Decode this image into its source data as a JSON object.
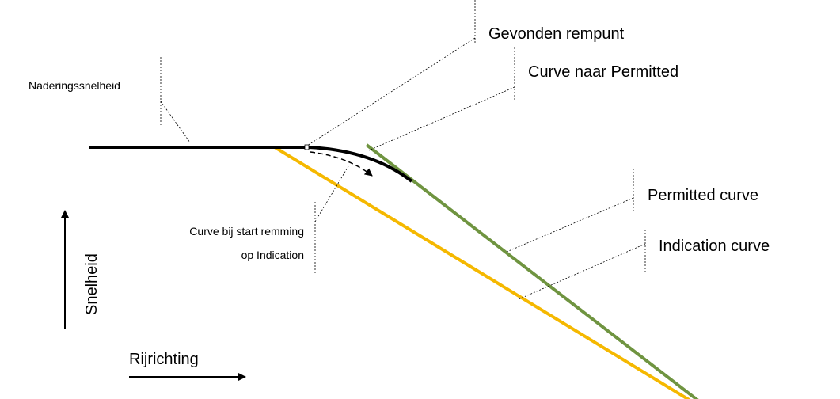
{
  "labels": {
    "found_brake_point": "Gevonden rempunt",
    "curve_to_permitted": "Curve naar Permitted",
    "approach_speed": "Naderingssnelheid",
    "permitted_curve": "Permitted curve",
    "indication_curve": "Indication curve",
    "curve_at_start": [
      "Curve bij start remming",
      "op Indication"
    ],
    "speed_axis": "Snelheid",
    "direction_axis": "Rijrichting"
  }
}
